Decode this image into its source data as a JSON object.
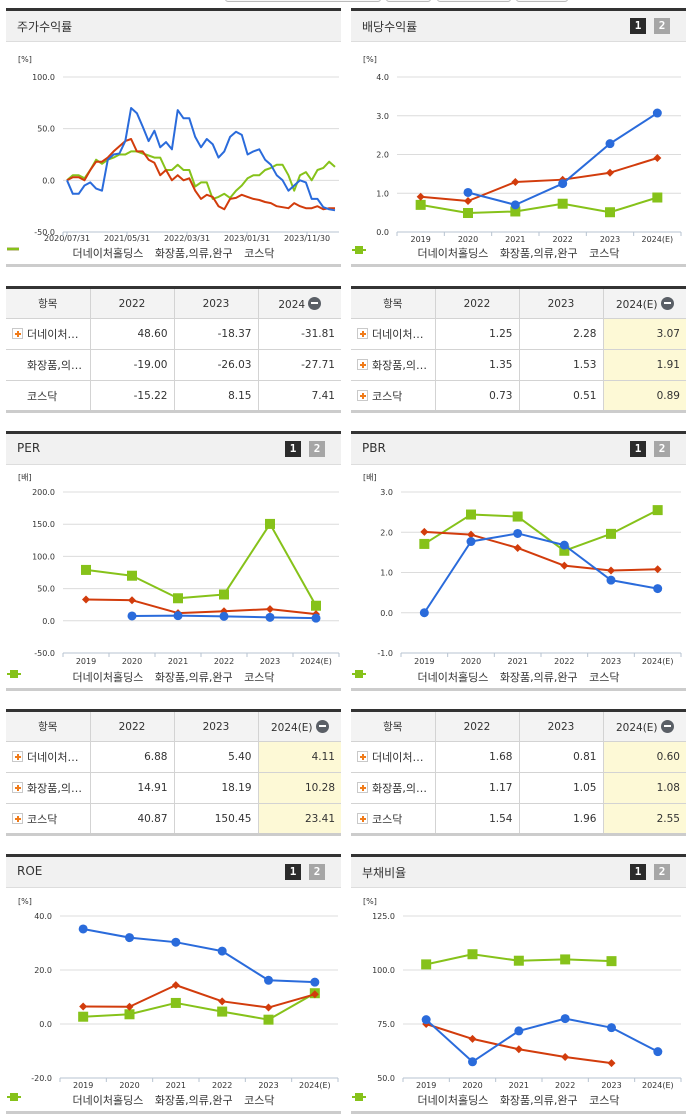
{
  "series_names": [
    "더네이처홀딩스",
    "화장품,의류,완구",
    "코스닥"
  ],
  "colors": {
    "company": "#2a6bdb",
    "industry": "#d23c0c",
    "kosdaq": "#86c21a"
  },
  "pager": {
    "one": "1",
    "two": "2"
  },
  "panels": {
    "stock": {
      "title": "주가수익률",
      "unit": "[%]"
    },
    "dividend": {
      "title": "배당수익률",
      "unit": "[%]"
    },
    "per": {
      "title": "PER",
      "unit": "[배]"
    },
    "pbr": {
      "title": "PBR",
      "unit": "[배]"
    },
    "roe": {
      "title": "ROE",
      "unit": "[%]"
    },
    "debt": {
      "title": "부채비율",
      "unit": "[%]"
    }
  },
  "tables": {
    "stock": {
      "headers": [
        "항목",
        "2022",
        "2023",
        "2024"
      ],
      "rows": [
        {
          "label": "더네이처…",
          "values": [
            "48.60",
            "-18.37",
            "-31.81"
          ],
          "expand": true
        },
        {
          "label": "화장품,의…",
          "values": [
            "-19.00",
            "-26.03",
            "-27.71"
          ],
          "expand": false
        },
        {
          "label": "코스닥",
          "values": [
            "-15.22",
            "8.15",
            "7.41"
          ],
          "expand": false
        }
      ]
    },
    "dividend": {
      "headers": [
        "항목",
        "2022",
        "2023",
        "2024(E)"
      ],
      "rows": [
        {
          "label": "더네이처…",
          "values": [
            "1.25",
            "2.28",
            "3.07"
          ],
          "expand": true
        },
        {
          "label": "화장품,의…",
          "values": [
            "1.35",
            "1.53",
            "1.91"
          ],
          "expand": true
        },
        {
          "label": "코스닥",
          "values": [
            "0.73",
            "0.51",
            "0.89"
          ],
          "expand": true
        }
      ]
    },
    "per": {
      "headers": [
        "항목",
        "2022",
        "2023",
        "2024(E)"
      ],
      "rows": [
        {
          "label": "더네이처…",
          "values": [
            "6.88",
            "5.40",
            "4.11"
          ],
          "expand": true
        },
        {
          "label": "화장품,의…",
          "values": [
            "14.91",
            "18.19",
            "10.28"
          ],
          "expand": true
        },
        {
          "label": "코스닥",
          "values": [
            "40.87",
            "150.45",
            "23.41"
          ],
          "expand": true
        }
      ]
    },
    "pbr": {
      "headers": [
        "항목",
        "2022",
        "2023",
        "2024(E)"
      ],
      "rows": [
        {
          "label": "더네이처…",
          "values": [
            "1.68",
            "0.81",
            "0.60"
          ],
          "expand": true
        },
        {
          "label": "화장품,의…",
          "values": [
            "1.17",
            "1.05",
            "1.08"
          ],
          "expand": true
        },
        {
          "label": "코스닥",
          "values": [
            "1.54",
            "1.96",
            "2.55"
          ],
          "expand": true
        }
      ]
    }
  },
  "chart_data": [
    {
      "id": "stock",
      "type": "line",
      "title": "주가수익률",
      "ylabel": "[%]",
      "ylim": [
        -50,
        100
      ],
      "yticks": [
        "100.0",
        "50.0",
        "0.0",
        "-50.0"
      ],
      "xticklabels": [
        "2020/07/31",
        "2021/05/31",
        "2022/03/31",
        "2023/01/31",
        "2023/11/30"
      ],
      "legend": [
        "더네이처홀딩스",
        "화장품,의류,완구",
        "코스닥"
      ],
      "series": [
        {
          "name": "더네이처홀딩스",
          "values": [
            0,
            -13,
            -13,
            -5,
            -2,
            -8,
            -10,
            20,
            25,
            26,
            38,
            70,
            65,
            52,
            38,
            48,
            32,
            37,
            30,
            68,
            60,
            60,
            42,
            32,
            40,
            35,
            22,
            28,
            42,
            47,
            44,
            25,
            28,
            30,
            20,
            15,
            5,
            0,
            -10,
            -5,
            0,
            -2,
            -18,
            -18,
            -26,
            -28,
            -29
          ]
        },
        {
          "name": "화장품,의류,완구",
          "values": [
            0,
            3,
            3,
            0,
            10,
            18,
            18,
            22,
            28,
            33,
            38,
            40,
            28,
            28,
            20,
            17,
            5,
            10,
            0,
            5,
            0,
            2,
            -10,
            -18,
            -14,
            -16,
            -25,
            -28,
            -18,
            -17,
            -14,
            -16,
            -18,
            -19,
            -21,
            -22,
            -25,
            -26,
            -27,
            -22,
            -25,
            -27,
            -27,
            -25,
            -28,
            -27,
            -27
          ]
        },
        {
          "name": "코스닥",
          "values": [
            0,
            5,
            5,
            2,
            10,
            20,
            16,
            20,
            22,
            25,
            25,
            28,
            28,
            26,
            24,
            22,
            22,
            10,
            10,
            15,
            10,
            10,
            -6,
            -2,
            -2,
            -18,
            -16,
            -13,
            -17,
            -10,
            -5,
            2,
            5,
            5,
            10,
            12,
            15,
            15,
            5,
            -10,
            5,
            8,
            0,
            10,
            12,
            18,
            13
          ]
        }
      ]
    },
    {
      "id": "dividend",
      "type": "line",
      "title": "배당수익률",
      "ylabel": "[%]",
      "ylim": [
        0,
        4
      ],
      "yticks": [
        "4.0",
        "3.0",
        "2.0",
        "1.0",
        "0.0"
      ],
      "categories": [
        "2019",
        "2020",
        "2021",
        "2022",
        "2023",
        "2024(E)"
      ],
      "series": [
        {
          "name": "더네이처홀딩스",
          "values": [
            null,
            1.02,
            0.7,
            1.25,
            2.28,
            3.07
          ]
        },
        {
          "name": "화장품,의류,완구",
          "values": [
            0.91,
            0.8,
            1.29,
            1.35,
            1.53,
            1.91
          ]
        },
        {
          "name": "코스닥",
          "values": [
            0.7,
            0.49,
            0.53,
            0.73,
            0.51,
            0.89
          ]
        }
      ]
    },
    {
      "id": "per",
      "type": "line",
      "title": "PER",
      "ylabel": "[배]",
      "ylim": [
        -50,
        200
      ],
      "yticks": [
        "200.0",
        "150.0",
        "100.0",
        "50.0",
        "0.0",
        "-50.0"
      ],
      "categories": [
        "2019",
        "2020",
        "2021",
        "2022",
        "2023",
        "2024(E)"
      ],
      "series": [
        {
          "name": "더네이처홀딩스",
          "values": [
            null,
            7.5,
            8.0,
            6.88,
            5.4,
            4.11
          ]
        },
        {
          "name": "화장품,의류,완구",
          "values": [
            33,
            32,
            12,
            14.91,
            18.19,
            10.28
          ]
        },
        {
          "name": "코스닥",
          "values": [
            79,
            70,
            35,
            40.87,
            150.45,
            23.41
          ]
        }
      ]
    },
    {
      "id": "pbr",
      "type": "line",
      "title": "PBR",
      "ylabel": "[배]",
      "ylim": [
        -1,
        3
      ],
      "yticks": [
        "3.0",
        "2.0",
        "1.0",
        "0.0",
        "-1.0"
      ],
      "categories": [
        "2019",
        "2020",
        "2021",
        "2022",
        "2023",
        "2024(E)"
      ],
      "series": [
        {
          "name": "더네이처홀딩스",
          "values": [
            0.0,
            1.77,
            1.97,
            1.68,
            0.81,
            0.6
          ]
        },
        {
          "name": "화장품,의류,완구",
          "values": [
            2.01,
            1.94,
            1.61,
            1.17,
            1.05,
            1.08
          ]
        },
        {
          "name": "코스닥",
          "values": [
            1.71,
            2.44,
            2.39,
            1.54,
            1.96,
            2.55
          ]
        }
      ]
    },
    {
      "id": "roe",
      "type": "line",
      "title": "ROE",
      "ylabel": "[%]",
      "ylim": [
        -20,
        40
      ],
      "yticks": [
        "40.0",
        "20.0",
        "0.0",
        "-20.0"
      ],
      "categories": [
        "2019",
        "2020",
        "2021",
        "2022",
        "2023",
        "2024(E)"
      ],
      "series": [
        {
          "name": "더네이처홀딩스",
          "values": [
            35.2,
            32.0,
            30.3,
            27.0,
            16.2,
            15.5
          ]
        },
        {
          "name": "화장품,의류,완구",
          "values": [
            6.5,
            6.4,
            14.4,
            8.4,
            6.1,
            11.0
          ]
        },
        {
          "name": "코스닥",
          "values": [
            2.7,
            3.6,
            7.8,
            4.6,
            1.6,
            11.4
          ]
        }
      ]
    },
    {
      "id": "debt",
      "type": "line",
      "title": "부채비율",
      "ylabel": "[%]",
      "ylim": [
        50,
        125
      ],
      "yticks": [
        "125.0",
        "100.0",
        "75.0",
        "50.0"
      ],
      "categories": [
        "2019",
        "2020",
        "2021",
        "2022",
        "2023",
        "2024(E)"
      ],
      "series": [
        {
          "name": "더네이처홀딩스",
          "values": [
            77.0,
            57.5,
            71.8,
            77.5,
            73.3,
            62.2
          ]
        },
        {
          "name": "화장품,의류,완구",
          "values": [
            75.0,
            68.1,
            63.3,
            59.7,
            56.9,
            null
          ]
        },
        {
          "name": "코스닥",
          "values": [
            102.6,
            107.3,
            104.3,
            104.9,
            104.1,
            null
          ]
        }
      ]
    }
  ]
}
